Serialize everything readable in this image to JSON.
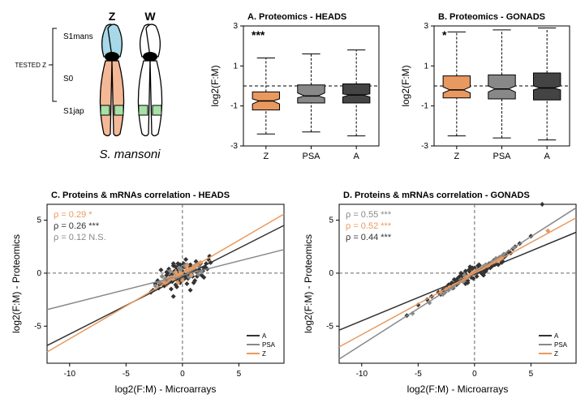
{
  "diagram": {
    "title": "S. mansoni",
    "z_label": "Z",
    "w_label": "W",
    "s1mans": "S1mans",
    "s0": "S0",
    "s1jap": "S1jap",
    "tested_label": "TESTED Z",
    "title_fontsize": 14,
    "label_fontsize": 11,
    "colors": {
      "chrom_outline": "#000000",
      "centromere": "#000000",
      "s1mans_fill": "#a8d8e8",
      "s0_fill": "#f4b896",
      "s1jap_fill": "#a8e0a8",
      "bracket": "#000000"
    }
  },
  "boxplotA": {
    "title": "A. Proteomics - HEADS",
    "ylabel": "log2(F:M)",
    "ylim": [
      -3,
      3
    ],
    "yticks": [
      -3,
      -1,
      1,
      3
    ],
    "categories": [
      "Z",
      "PSA",
      "A"
    ],
    "signif": "***",
    "background": "#ffffff",
    "boxes": [
      {
        "cat": "Z",
        "min": -2.4,
        "q1": -1.2,
        "med": -0.75,
        "q3": -0.3,
        "max": 1.4,
        "notch_lo": -0.9,
        "notch_hi": -0.65,
        "fill": "#e8995f",
        "stroke": "#000"
      },
      {
        "cat": "PSA",
        "min": -2.3,
        "q1": -0.85,
        "med": -0.5,
        "q3": 0.05,
        "max": 1.6,
        "notch_lo": -0.6,
        "notch_hi": -0.35,
        "fill": "#888888",
        "stroke": "#000"
      },
      {
        "cat": "A",
        "min": -2.5,
        "q1": -0.85,
        "med": -0.45,
        "q3": 0.1,
        "max": 1.8,
        "notch_lo": -0.55,
        "notch_hi": -0.4,
        "fill": "#444444",
        "stroke": "#000"
      }
    ],
    "hline_y": 0,
    "hline_style": "dashed",
    "hline_color": "#000000",
    "title_fontsize": 11,
    "label_fontsize": 12,
    "tick_fontsize": 10
  },
  "boxplotB": {
    "title": "B. Proteomics - GONADS",
    "ylabel": "log2(F:M)",
    "ylim": [
      -3,
      3
    ],
    "yticks": [
      -3,
      -1,
      1,
      3
    ],
    "categories": [
      "Z",
      "PSA",
      "A"
    ],
    "signif": "*",
    "background": "#ffffff",
    "boxes": [
      {
        "cat": "Z",
        "min": -2.5,
        "q1": -0.6,
        "med": -0.2,
        "q3": 0.5,
        "max": 2.7,
        "notch_lo": -0.35,
        "notch_hi": -0.05,
        "fill": "#e8995f",
        "stroke": "#000"
      },
      {
        "cat": "PSA",
        "min": -2.6,
        "q1": -0.65,
        "med": -0.15,
        "q3": 0.55,
        "max": 2.8,
        "notch_lo": -0.3,
        "notch_hi": 0.0,
        "fill": "#888888",
        "stroke": "#000"
      },
      {
        "cat": "A",
        "min": -2.7,
        "q1": -0.7,
        "med": -0.1,
        "q3": 0.65,
        "max": 2.9,
        "notch_lo": -0.2,
        "notch_hi": 0.0,
        "fill": "#444444",
        "stroke": "#000"
      }
    ],
    "hline_y": 0,
    "hline_style": "dashed",
    "hline_color": "#000000",
    "title_fontsize": 11,
    "label_fontsize": 12,
    "tick_fontsize": 10
  },
  "scatterC": {
    "title": "C. Proteins & mRNAs correlation - HEADS",
    "xlabel": "log2(F:M) - Microarrays",
    "ylabel": "log2(F:M) - Proteomics",
    "xlim": [
      -12,
      9
    ],
    "xticks": [
      -10,
      -5,
      0,
      5
    ],
    "ylim": [
      -8.5,
      6.5
    ],
    "yticks": [
      -5,
      0,
      5
    ],
    "colors": {
      "A": "#333333",
      "PSA": "#888888",
      "Z": "#e8995f"
    },
    "marker_size": 3,
    "hline_color": "#666666",
    "vline_color": "#666666",
    "line_dash": "dashed",
    "legend": [
      {
        "label": "A",
        "color": "#333333"
      },
      {
        "label": "PSA",
        "color": "#888888"
      },
      {
        "label": "Z",
        "color": "#e8995f"
      }
    ],
    "rho_text": [
      {
        "text": "ρ = 0.29 *",
        "color": "#e8995f"
      },
      {
        "text": "ρ = 0.26 ***",
        "color": "#333333"
      },
      {
        "text": "ρ = 0.12 N.S.",
        "color": "#888888"
      }
    ],
    "rho_fontsize": 11,
    "lines": [
      {
        "group": "A",
        "slope": 0.54,
        "intercept": -0.35,
        "color": "#333333"
      },
      {
        "group": "PSA",
        "slope": 0.27,
        "intercept": -0.2,
        "color": "#888888"
      },
      {
        "group": "Z",
        "slope": 0.62,
        "intercept": 0.0,
        "color": "#e8995f"
      }
    ],
    "points": {
      "A": [
        [
          -1.2,
          -0.8
        ],
        [
          0.4,
          0.2
        ],
        [
          -0.6,
          -1.1
        ],
        [
          1.1,
          0.6
        ],
        [
          -2.1,
          -1.4
        ],
        [
          0.9,
          -0.3
        ],
        [
          -0.2,
          0.8
        ],
        [
          1.6,
          1.0
        ],
        [
          -1.4,
          0.1
        ],
        [
          0.0,
          -0.6
        ],
        [
          2.1,
          0.9
        ],
        [
          -0.8,
          -2.2
        ],
        [
          0.3,
          1.3
        ],
        [
          -1.7,
          -0.9
        ],
        [
          1.9,
          -0.4
        ],
        [
          -0.4,
          0.4
        ],
        [
          0.7,
          -1.6
        ],
        [
          -2.4,
          -1.0
        ],
        [
          1.3,
          0.1
        ],
        [
          -0.1,
          -0.3
        ],
        [
          0.6,
          0.7
        ],
        [
          -1.0,
          -0.2
        ],
        [
          2.4,
          1.6
        ],
        [
          -0.5,
          -1.3
        ],
        [
          0.2,
          0.0
        ],
        [
          1.0,
          -0.9
        ],
        [
          -1.9,
          0.3
        ],
        [
          0.8,
          0.5
        ],
        [
          -0.3,
          -0.7
        ],
        [
          1.5,
          0.3
        ],
        [
          -2.8,
          -1.8
        ],
        [
          0.1,
          0.9
        ],
        [
          -1.1,
          -0.4
        ],
        [
          2.0,
          0.6
        ],
        [
          -0.7,
          0.2
        ],
        [
          0.5,
          -0.5
        ],
        [
          -1.6,
          -1.2
        ],
        [
          1.2,
          1.1
        ],
        [
          -0.9,
          -0.1
        ],
        [
          0.0,
          0.5
        ],
        [
          1.7,
          -0.2
        ],
        [
          -2.2,
          -0.7
        ],
        [
          0.4,
          -1.0
        ],
        [
          -0.6,
          0.6
        ],
        [
          1.4,
          0.8
        ],
        [
          -1.3,
          0.0
        ],
        [
          0.9,
          0.3
        ],
        [
          -0.2,
          -0.9
        ],
        [
          2.3,
          1.3
        ],
        [
          -0.8,
          0.7
        ],
        [
          0.3,
          -0.4
        ],
        [
          -1.5,
          -0.6
        ],
        [
          1.8,
          0.2
        ],
        [
          -0.4,
          0.9
        ],
        [
          0.6,
          -0.2
        ],
        [
          -1.0,
          -1.5
        ],
        [
          2.2,
          0.4
        ],
        [
          -0.5,
          0.1
        ],
        [
          0.7,
          0.8
        ],
        [
          -1.8,
          -0.3
        ],
        [
          1.1,
          -0.7
        ],
        [
          -0.1,
          0.3
        ],
        [
          0.8,
          -0.1
        ],
        [
          -2.0,
          -1.1
        ],
        [
          1.6,
          0.9
        ],
        [
          -0.7,
          -0.5
        ],
        [
          0.2,
          0.6
        ],
        [
          -1.2,
          0.4
        ],
        [
          2.5,
          1.0
        ],
        [
          -0.9,
          -0.8
        ],
        [
          0.5,
          0.0
        ],
        [
          1.0,
          0.4
        ],
        [
          -1.4,
          -0.2
        ],
        [
          0.1,
          -0.6
        ],
        [
          -0.3,
          0.7
        ],
        [
          1.3,
          -0.3
        ],
        [
          -2.6,
          -1.6
        ],
        [
          0.0,
          0.2
        ],
        [
          -0.8,
          0.9
        ],
        [
          1.9,
          0.5
        ]
      ],
      "PSA": [
        [
          -0.9,
          -0.4
        ],
        [
          0.5,
          0.1
        ],
        [
          -1.6,
          -0.7
        ],
        [
          1.2,
          0.3
        ],
        [
          -0.3,
          0.5
        ],
        [
          0.8,
          -0.2
        ],
        [
          -2.0,
          -0.9
        ],
        [
          0.2,
          0.7
        ],
        [
          -0.6,
          -0.1
        ],
        [
          1.5,
          0.6
        ],
        [
          -1.1,
          0.2
        ],
        [
          0.0,
          -0.5
        ],
        [
          0.9,
          0.4
        ],
        [
          -1.8,
          -0.3
        ],
        [
          0.4,
          0.8
        ],
        [
          -0.5,
          -0.6
        ],
        [
          1.7,
          0.1
        ],
        [
          -0.2,
          0.3
        ],
        [
          0.6,
          -0.4
        ],
        [
          -1.3,
          -0.8
        ],
        [
          1.0,
          0.5
        ],
        [
          -0.7,
          0.0
        ],
        [
          0.3,
          0.6
        ],
        [
          -2.4,
          -1.2
        ],
        [
          1.4,
          -0.1
        ],
        [
          -0.1,
          0.4
        ],
        [
          0.7,
          0.2
        ],
        [
          -1.5,
          -0.5
        ],
        [
          1.1,
          0.7
        ],
        [
          -0.4,
          -0.3
        ]
      ],
      "Z": [
        [
          -0.8,
          -0.6
        ],
        [
          0.3,
          0.2
        ],
        [
          -1.4,
          -1.1
        ],
        [
          0.9,
          0.5
        ],
        [
          -0.2,
          -0.3
        ],
        [
          1.3,
          0.8
        ],
        [
          -0.6,
          0.1
        ],
        [
          0.0,
          -0.7
        ],
        [
          0.7,
          0.4
        ],
        [
          -1.0,
          -0.4
        ],
        [
          1.6,
          1.0
        ],
        [
          -0.4,
          -0.9
        ],
        [
          0.5,
          0.3
        ],
        [
          -1.7,
          -0.8
        ],
        [
          1.1,
          0.6
        ],
        [
          -0.1,
          0.0
        ],
        [
          0.8,
          -0.2
        ],
        [
          -1.2,
          -0.5
        ],
        [
          0.4,
          0.7
        ],
        [
          -0.5,
          -0.1
        ]
      ]
    }
  },
  "scatterD": {
    "title": "D. Proteins & mRNAs correlation  - GONADS",
    "xlabel": "log2(F:M) - Microarrays",
    "ylabel": "log2(F:M) - Proteomics",
    "xlim": [
      -12,
      9
    ],
    "xticks": [
      -10,
      -5,
      0,
      5
    ],
    "ylim": [
      -8.5,
      6.5
    ],
    "yticks": [
      -5,
      0,
      5
    ],
    "colors": {
      "A": "#333333",
      "PSA": "#888888",
      "Z": "#e8995f"
    },
    "marker_size": 3,
    "hline_color": "#666666",
    "vline_color": "#666666",
    "line_dash": "dashed",
    "legend": [
      {
        "label": "A",
        "color": "#333333"
      },
      {
        "label": "PSA",
        "color": "#888888"
      },
      {
        "label": "Z",
        "color": "#e8995f"
      }
    ],
    "rho_text": [
      {
        "text": "ρ = 0.55 ***",
        "color": "#888888"
      },
      {
        "text": "ρ = 0.52 ***",
        "color": "#e8995f"
      },
      {
        "text": "ρ = 0.44 ***",
        "color": "#333333"
      }
    ],
    "rho_fontsize": 11,
    "lines": [
      {
        "group": "A",
        "slope": 0.44,
        "intercept": -0.1,
        "color": "#333333"
      },
      {
        "group": "PSA",
        "slope": 0.68,
        "intercept": 0.05,
        "color": "#888888"
      },
      {
        "group": "Z",
        "slope": 0.58,
        "intercept": 0.0,
        "color": "#e8995f"
      }
    ],
    "points": {
      "A": [
        [
          -2.5,
          -1.4
        ],
        [
          0.6,
          0.3
        ],
        [
          -1.0,
          -0.8
        ],
        [
          2.0,
          1.2
        ],
        [
          -3.2,
          -1.8
        ],
        [
          1.4,
          0.5
        ],
        [
          -0.4,
          0.1
        ],
        [
          3.0,
          2.0
        ],
        [
          -1.8,
          -0.6
        ],
        [
          0.2,
          -0.3
        ],
        [
          2.6,
          1.5
        ],
        [
          -0.8,
          -1.0
        ],
        [
          1.0,
          0.8
        ],
        [
          -2.2,
          -1.2
        ],
        [
          0.8,
          -0.2
        ],
        [
          -0.2,
          0.5
        ],
        [
          1.8,
          0.9
        ],
        [
          -1.4,
          -0.4
        ],
        [
          0.0,
          0.2
        ],
        [
          2.4,
          1.0
        ],
        [
          -0.6,
          -0.7
        ],
        [
          1.2,
          0.6
        ],
        [
          -2.8,
          -1.6
        ],
        [
          0.4,
          0.4
        ],
        [
          -1.2,
          0.0
        ],
        [
          2.2,
          1.3
        ],
        [
          -0.1,
          -0.5
        ],
        [
          1.6,
          0.7
        ],
        [
          -2.0,
          -0.9
        ],
        [
          0.9,
          0.1
        ],
        [
          3.4,
          2.3
        ],
        [
          -1.6,
          -1.1
        ],
        [
          0.5,
          0.6
        ],
        [
          -0.7,
          -0.2
        ],
        [
          2.8,
          1.7
        ],
        [
          -1.1,
          -0.3
        ],
        [
          1.1,
          0.4
        ],
        [
          -3.0,
          -2.0
        ],
        [
          0.3,
          0.7
        ],
        [
          -0.5,
          0.3
        ],
        [
          1.9,
          1.1
        ],
        [
          -1.3,
          -0.8
        ],
        [
          0.7,
          -0.1
        ],
        [
          2.1,
          0.8
        ],
        [
          -0.9,
          -0.6
        ],
        [
          0.1,
          0.4
        ],
        [
          -2.4,
          -1.3
        ],
        [
          1.5,
          1.0
        ],
        [
          -0.3,
          -0.4
        ],
        [
          3.2,
          1.9
        ],
        [
          -1.7,
          -0.7
        ],
        [
          0.6,
          0.5
        ],
        [
          -0.8,
          0.2
        ],
        [
          2.3,
          1.4
        ],
        [
          -1.0,
          -0.1
        ],
        [
          1.3,
          0.9
        ],
        [
          -2.6,
          -1.5
        ],
        [
          0.2,
          0.0
        ],
        [
          -0.4,
          0.6
        ],
        [
          1.7,
          1.2
        ],
        [
          -1.5,
          -0.5
        ],
        [
          0.8,
          0.3
        ],
        [
          2.7,
          1.6
        ],
        [
          -0.6,
          -0.9
        ],
        [
          1.0,
          0.2
        ],
        [
          -2.1,
          -1.0
        ],
        [
          0.4,
          0.8
        ],
        [
          -1.2,
          -0.2
        ],
        [
          2.5,
          1.1
        ],
        [
          -0.2,
          0.4
        ],
        [
          1.4,
          0.6
        ],
        [
          -1.9,
          -1.4
        ],
        [
          0.0,
          0.5
        ],
        [
          3.6,
          2.5
        ],
        [
          -0.7,
          -0.3
        ],
        [
          1.8,
          0.8
        ],
        [
          -1.4,
          -0.9
        ],
        [
          0.9,
          0.7
        ],
        [
          -2.3,
          -1.1
        ],
        [
          0.5,
          0.1
        ],
        [
          -5.0,
          -3.0
        ],
        [
          4.0,
          2.8
        ],
        [
          -4.2,
          -2.5
        ],
        [
          5.0,
          3.5
        ],
        [
          -6.0,
          -4.0
        ],
        [
          6.0,
          6.5
        ],
        [
          -3.8,
          -2.2
        ]
      ],
      "PSA": [
        [
          -1.8,
          -1.2
        ],
        [
          0.7,
          0.6
        ],
        [
          -2.6,
          -1.8
        ],
        [
          1.5,
          1.0
        ],
        [
          -0.5,
          -0.3
        ],
        [
          2.2,
          1.5
        ],
        [
          -1.2,
          -0.6
        ],
        [
          0.3,
          0.2
        ],
        [
          1.0,
          0.8
        ],
        [
          -2.0,
          -1.4
        ],
        [
          0.0,
          0.0
        ],
        [
          1.8,
          1.2
        ],
        [
          -0.8,
          -0.5
        ],
        [
          2.6,
          1.8
        ],
        [
          -1.5,
          -0.9
        ],
        [
          0.5,
          0.4
        ],
        [
          -2.3,
          -1.6
        ],
        [
          1.2,
          0.7
        ],
        [
          -0.3,
          -0.1
        ],
        [
          2.0,
          1.3
        ],
        [
          -1.0,
          -0.8
        ],
        [
          0.8,
          0.5
        ],
        [
          -2.8,
          -2.0
        ],
        [
          1.6,
          1.1
        ],
        [
          -0.6,
          -0.4
        ],
        [
          2.4,
          1.6
        ],
        [
          -1.3,
          -0.7
        ],
        [
          0.2,
          0.3
        ],
        [
          1.9,
          1.4
        ],
        [
          -0.9,
          -0.2
        ],
        [
          -4.0,
          -2.8
        ],
        [
          3.5,
          2.4
        ],
        [
          -5.5,
          -3.8
        ]
      ],
      "Z": [
        [
          -1.5,
          -0.9
        ],
        [
          0.6,
          0.4
        ],
        [
          -2.2,
          -1.3
        ],
        [
          1.3,
          0.8
        ],
        [
          -0.4,
          -0.2
        ],
        [
          2.0,
          1.2
        ],
        [
          -1.0,
          -0.6
        ],
        [
          0.2,
          0.1
        ],
        [
          1.6,
          1.0
        ],
        [
          -0.7,
          -0.4
        ],
        [
          2.4,
          1.4
        ],
        [
          -1.8,
          -1.1
        ],
        [
          0.9,
          0.6
        ],
        [
          -0.2,
          0.0
        ],
        [
          1.1,
          0.7
        ],
        [
          -2.5,
          -1.5
        ],
        [
          0.4,
          0.3
        ],
        [
          -1.3,
          -0.8
        ],
        [
          1.8,
          1.1
        ],
        [
          -0.6,
          -0.3
        ],
        [
          0.0,
          0.2
        ],
        [
          2.2,
          1.3
        ],
        [
          -0.9,
          -0.5
        ],
        [
          0.7,
          0.5
        ],
        [
          6.5,
          4.0
        ],
        [
          -3.0,
          -1.8
        ]
      ]
    }
  }
}
